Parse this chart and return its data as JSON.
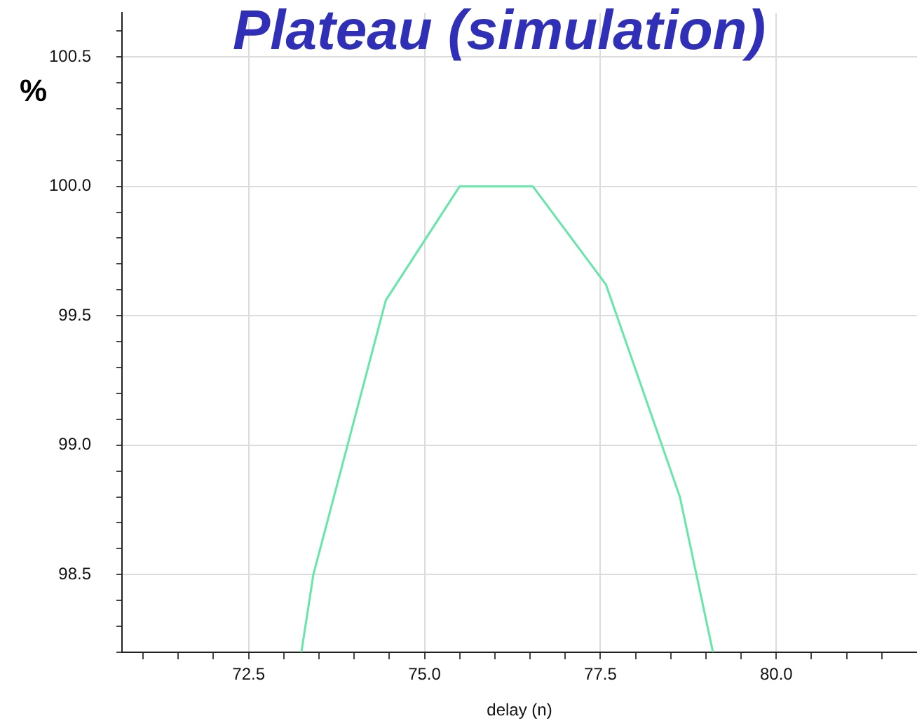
{
  "chart_data": {
    "type": "line",
    "title": "Plateau (simulation)",
    "ylabel": "%",
    "xlabel": "delay (n)",
    "x": [
      73.25,
      73.42,
      74.45,
      75.5,
      76.54,
      77.58,
      78.63,
      79.1
    ],
    "series": [
      {
        "color": "#66e6a8",
        "values": [
          98.2,
          98.5,
          99.56,
          100.0,
          100.0,
          99.62,
          98.8,
          98.2
        ]
      }
    ],
    "xlim": [
      70.7,
      82.0
    ],
    "xticks": [
      {
        "value": 71.0,
        "label": null
      },
      {
        "value": 71.5,
        "label": null
      },
      {
        "value": 72.0,
        "label": null
      },
      {
        "value": 72.5,
        "label": "72.5"
      },
      {
        "value": 73.0,
        "label": null
      },
      {
        "value": 73.5,
        "label": null
      },
      {
        "value": 74.0,
        "label": null
      },
      {
        "value": 74.5,
        "label": null
      },
      {
        "value": 75.0,
        "label": "75.0"
      },
      {
        "value": 75.5,
        "label": null
      },
      {
        "value": 76.0,
        "label": null
      },
      {
        "value": 76.5,
        "label": null
      },
      {
        "value": 77.0,
        "label": null
      },
      {
        "value": 77.5,
        "label": "77.5"
      },
      {
        "value": 78.0,
        "label": null
      },
      {
        "value": 78.5,
        "label": null
      },
      {
        "value": 79.0,
        "label": null
      },
      {
        "value": 79.5,
        "label": null
      },
      {
        "value": 80.0,
        "label": "80.0"
      },
      {
        "value": 80.5,
        "label": null
      },
      {
        "value": 81.0,
        "label": null
      },
      {
        "value": 81.5,
        "label": null
      }
    ],
    "ylim": [
      98.2,
      100.67
    ],
    "yticks": [
      {
        "value": 98.2,
        "label": null
      },
      {
        "value": 98.3,
        "label": null
      },
      {
        "value": 98.4,
        "label": null
      },
      {
        "value": 98.5,
        "label": "98.5"
      },
      {
        "value": 98.6,
        "label": null
      },
      {
        "value": 98.7,
        "label": null
      },
      {
        "value": 98.8,
        "label": null
      },
      {
        "value": 98.9,
        "label": null
      },
      {
        "value": 99.0,
        "label": "99.0"
      },
      {
        "value": 99.1,
        "label": null
      },
      {
        "value": 99.2,
        "label": null
      },
      {
        "value": 99.3,
        "label": null
      },
      {
        "value": 99.4,
        "label": null
      },
      {
        "value": 99.5,
        "label": "99.5"
      },
      {
        "value": 99.6,
        "label": null
      },
      {
        "value": 99.7,
        "label": null
      },
      {
        "value": 99.8,
        "label": null
      },
      {
        "value": 99.9,
        "label": null
      },
      {
        "value": 100.0,
        "label": "100.0"
      },
      {
        "value": 100.1,
        "label": null
      },
      {
        "value": 100.2,
        "label": null
      },
      {
        "value": 100.3,
        "label": null
      },
      {
        "value": 100.4,
        "label": null
      },
      {
        "value": 100.5,
        "label": "100.5"
      },
      {
        "value": 100.6,
        "label": null
      }
    ],
    "grid": true,
    "marker": "none",
    "line_style": "solid"
  }
}
